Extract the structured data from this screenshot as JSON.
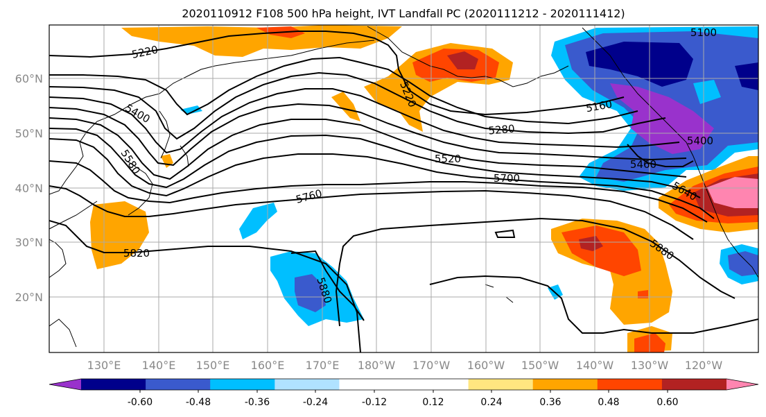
{
  "title": "2020110912 F108 500 hPa height, IVT Landfall PC (2020111212 - 2020111412)",
  "lat_labels": [
    "60°N",
    "50°N",
    "40°N",
    "30°N",
    "20°N"
  ],
  "lon_labels": [
    "130°E",
    "140°E",
    "150°E",
    "160°E",
    "170°E",
    "180°W",
    "170°W",
    "160°W",
    "150°W",
    "140°W",
    "130°W",
    "120°W"
  ],
  "colorbar": {
    "colors": [
      "#9932cc",
      "#00008b",
      "#3a5acd",
      "#00bfff",
      "#b0e2ff",
      "#ffffff",
      "#ffffff",
      "#ffe680",
      "#ffa500",
      "#ff4500",
      "#b22222",
      "#ff85b0"
    ],
    "tick_labels": [
      "-0.60",
      "-0.48",
      "-0.36",
      "-0.24",
      "-0.12",
      "0.12",
      "0.24",
      "0.36",
      "0.48",
      "0.60"
    ]
  },
  "contour_labels": [
    "5220",
    "5100",
    "5400",
    "5580",
    "5220",
    "5160",
    "5280",
    "5520",
    "5700",
    "5760",
    "5640",
    "5460",
    "5820",
    "5880",
    "5880",
    "5400"
  ]
}
